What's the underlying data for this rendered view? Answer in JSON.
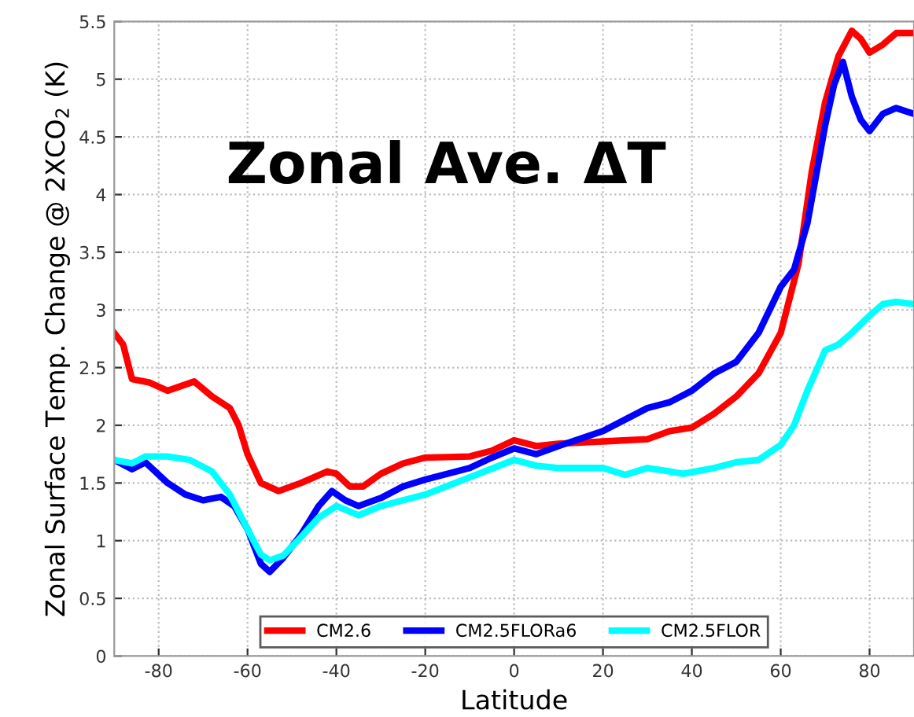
{
  "chart_data": {
    "type": "line",
    "title": "Zonal Ave. ΔT",
    "xlabel": "Latitude",
    "ylabel": "Zonal Surface Temp. Change @ 2XCO$_{2}$ (K)",
    "xlim": [
      -90,
      90
    ],
    "xticks": [
      -80,
      -60,
      -40,
      -20,
      0,
      20,
      40,
      60,
      80
    ],
    "ylim": [
      0,
      5.5
    ],
    "yticks": [
      0,
      0.5,
      1,
      1.5,
      2,
      2.5,
      3,
      3.5,
      4,
      4.5,
      5,
      5.5
    ],
    "grid": true,
    "legend": "bottom",
    "line_style": "solid",
    "marker": "none",
    "series": [
      {
        "name": "CM2.6",
        "color": "#ff0000",
        "x": [
          -90,
          -88,
          -86,
          -82,
          -78,
          -72,
          -68,
          -64,
          -62,
          -60,
          -57,
          -53,
          -48,
          -42,
          -40,
          -37,
          -34,
          -30,
          -25,
          -20,
          -10,
          -5,
          0,
          5,
          10,
          20,
          30,
          35,
          40,
          45,
          50,
          55,
          60,
          64,
          67,
          70,
          73,
          76,
          78,
          80,
          83,
          86,
          90
        ],
        "values": [
          2.8,
          2.7,
          2.4,
          2.37,
          2.3,
          2.38,
          2.25,
          2.15,
          2.0,
          1.75,
          1.5,
          1.43,
          1.5,
          1.6,
          1.58,
          1.47,
          1.47,
          1.58,
          1.67,
          1.72,
          1.73,
          1.78,
          1.87,
          1.82,
          1.84,
          1.86,
          1.88,
          1.95,
          1.98,
          2.1,
          2.25,
          2.45,
          2.8,
          3.4,
          4.2,
          4.8,
          5.2,
          5.42,
          5.35,
          5.23,
          5.3,
          5.4,
          5.4
        ]
      },
      {
        "name": "CM2.5FLORa6",
        "color": "#0000ff",
        "x": [
          -90,
          -86,
          -83,
          -78,
          -74,
          -70,
          -66,
          -63,
          -60,
          -57,
          -55,
          -52,
          -48,
          -44,
          -41,
          -38,
          -35,
          -30,
          -25,
          -20,
          -10,
          -5,
          0,
          5,
          10,
          20,
          30,
          35,
          40,
          45,
          50,
          55,
          60,
          63,
          66,
          70,
          72,
          74,
          76,
          78,
          80,
          83,
          86,
          90
        ],
        "values": [
          1.7,
          1.62,
          1.68,
          1.5,
          1.4,
          1.35,
          1.38,
          1.3,
          1.1,
          0.8,
          0.73,
          0.85,
          1.05,
          1.3,
          1.43,
          1.35,
          1.3,
          1.37,
          1.47,
          1.53,
          1.63,
          1.72,
          1.8,
          1.75,
          1.82,
          1.95,
          2.15,
          2.2,
          2.3,
          2.45,
          2.55,
          2.8,
          3.2,
          3.35,
          3.75,
          4.6,
          4.95,
          5.15,
          4.85,
          4.65,
          4.55,
          4.7,
          4.75,
          4.7
        ]
      },
      {
        "name": "CM2.5FLOR",
        "color": "#00ffff",
        "x": [
          -90,
          -86,
          -83,
          -78,
          -73,
          -68,
          -64,
          -60,
          -57,
          -55,
          -52,
          -48,
          -44,
          -40,
          -35,
          -30,
          -20,
          -10,
          0,
          5,
          10,
          20,
          25,
          30,
          35,
          38,
          45,
          50,
          55,
          60,
          63,
          66,
          70,
          73,
          76,
          80,
          83,
          86,
          90
        ],
        "values": [
          1.7,
          1.67,
          1.73,
          1.73,
          1.7,
          1.6,
          1.4,
          1.1,
          0.88,
          0.83,
          0.87,
          1.03,
          1.2,
          1.3,
          1.22,
          1.3,
          1.4,
          1.55,
          1.7,
          1.65,
          1.63,
          1.63,
          1.57,
          1.63,
          1.6,
          1.58,
          1.63,
          1.68,
          1.7,
          1.83,
          2.0,
          2.3,
          2.65,
          2.7,
          2.8,
          2.95,
          3.05,
          3.07,
          3.05
        ]
      }
    ]
  }
}
